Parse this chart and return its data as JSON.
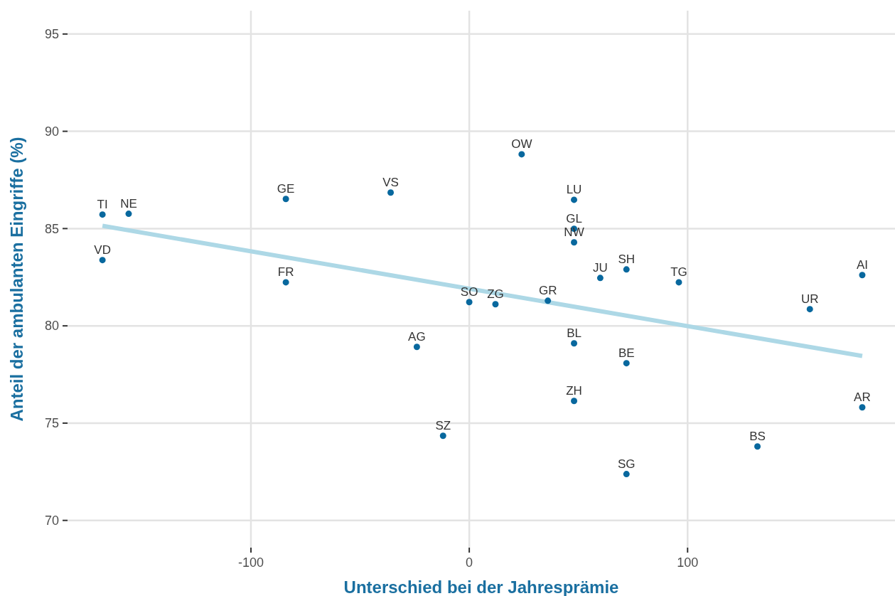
{
  "chart_data": {
    "type": "scatter",
    "xlabel": "Unterschied bei der Jahresprämie",
    "ylabel": "Anteil der ambulanten Eingriffe (%)",
    "xlim": [
      -184,
      195
    ],
    "ylim": [
      68.6,
      96.2
    ],
    "xticks": [
      -100,
      0,
      100
    ],
    "yticks": [
      70,
      75,
      80,
      85,
      90,
      95
    ],
    "grid": true,
    "marker": "circle",
    "series": [
      {
        "color": "#08689e",
        "x": [
          -168,
          -156,
          -168,
          -84,
          -36,
          -84,
          0,
          12,
          24,
          48,
          48,
          48,
          60,
          72,
          96,
          36,
          180,
          156,
          48,
          72,
          -24,
          48,
          -12,
          180,
          132,
          72
        ],
        "values": [
          85.72,
          85.76,
          83.38,
          86.52,
          86.85,
          82.24,
          81.22,
          81.11,
          88.82,
          86.48,
          84.99,
          84.29,
          82.46,
          82.9,
          82.24,
          81.29,
          82.61,
          80.86,
          79.1,
          78.08,
          78.92,
          76.14,
          74.35,
          75.81,
          73.8,
          72.38
        ]
      },
      {
        "type": "line",
        "color": "#add8e6",
        "marker": "none",
        "x": [
          -168,
          180
        ],
        "values": [
          85.14,
          78.45
        ]
      }
    ],
    "annotations": [
      {
        "text": "TI",
        "x": -168,
        "y": 85.72
      },
      {
        "text": "NE",
        "x": -156,
        "y": 85.76
      },
      {
        "text": "VD",
        "x": -168,
        "y": 83.38
      },
      {
        "text": "GE",
        "x": -84,
        "y": 86.52
      },
      {
        "text": "VS",
        "x": -36,
        "y": 86.85
      },
      {
        "text": "FR",
        "x": -84,
        "y": 82.24
      },
      {
        "text": "SO",
        "x": 0,
        "y": 81.22
      },
      {
        "text": "ZG",
        "x": 12,
        "y": 81.11
      },
      {
        "text": "OW",
        "x": 24,
        "y": 88.82
      },
      {
        "text": "LU",
        "x": 48,
        "y": 86.48
      },
      {
        "text": "GL",
        "x": 48,
        "y": 84.99
      },
      {
        "text": "NW",
        "x": 48,
        "y": 84.29
      },
      {
        "text": "JU",
        "x": 60,
        "y": 82.46
      },
      {
        "text": "SH",
        "x": 72,
        "y": 82.9
      },
      {
        "text": "TG",
        "x": 96,
        "y": 82.24
      },
      {
        "text": "GR",
        "x": 36,
        "y": 81.29
      },
      {
        "text": "AI",
        "x": 180,
        "y": 82.61
      },
      {
        "text": "UR",
        "x": 156,
        "y": 80.86
      },
      {
        "text": "BL",
        "x": 48,
        "y": 79.1
      },
      {
        "text": "BE",
        "x": 72,
        "y": 78.08
      },
      {
        "text": "AG",
        "x": -24,
        "y": 78.92
      },
      {
        "text": "ZH",
        "x": 48,
        "y": 76.14
      },
      {
        "text": "SZ",
        "x": -12,
        "y": 74.35
      },
      {
        "text": "AR",
        "x": 180,
        "y": 75.81
      },
      {
        "text": "BS",
        "x": 132,
        "y": 73.8
      },
      {
        "text": "SG",
        "x": 72,
        "y": 72.38
      }
    ]
  }
}
